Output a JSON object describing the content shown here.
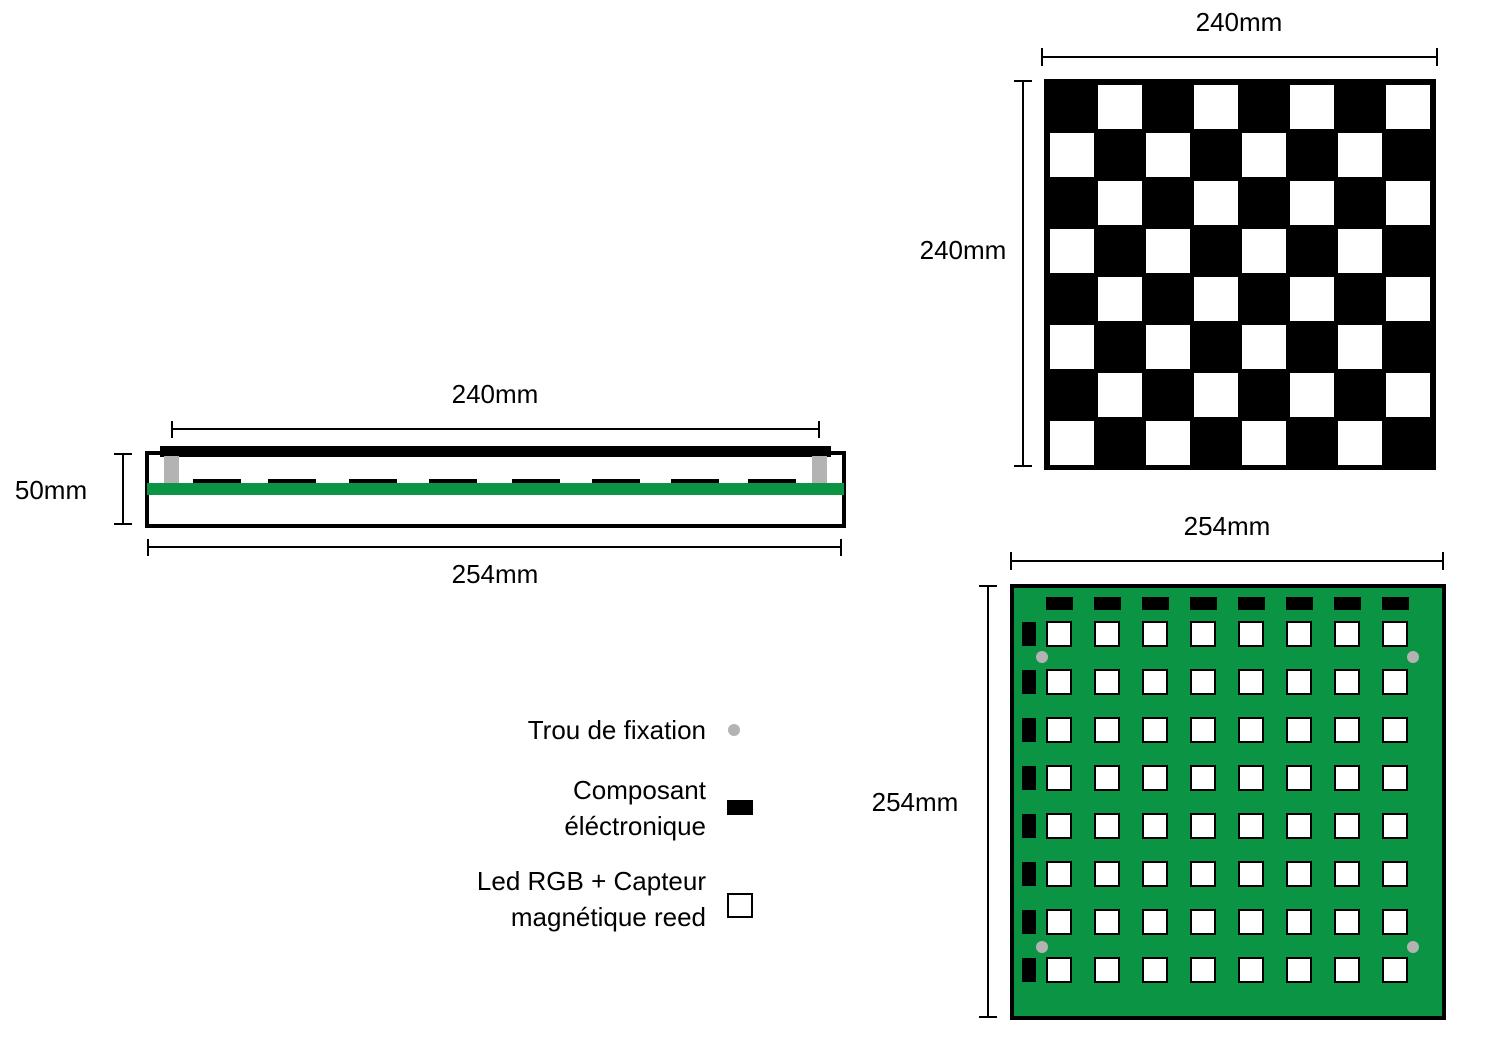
{
  "side_view": {
    "top_width_label": "240mm",
    "height_label": "50mm",
    "bottom_width_label": "254mm"
  },
  "board_view": {
    "width_label": "240mm",
    "height_label": "240mm",
    "grid_size": 8
  },
  "pcb_view": {
    "width_label": "254mm",
    "height_label": "254mm",
    "grid_size": 8
  },
  "legend": {
    "mounting_hole": "Trou de fixation",
    "component_line1": "Composant",
    "component_line2": "éléctronique",
    "led_line1": "Led RGB + Capteur",
    "led_line2": "magnétique reed"
  },
  "colors": {
    "pcb_green": "#0a9443",
    "frame_black": "#000000",
    "spacer_grey": "#b3b3b3",
    "hole_grey": "#b3b3b3"
  }
}
